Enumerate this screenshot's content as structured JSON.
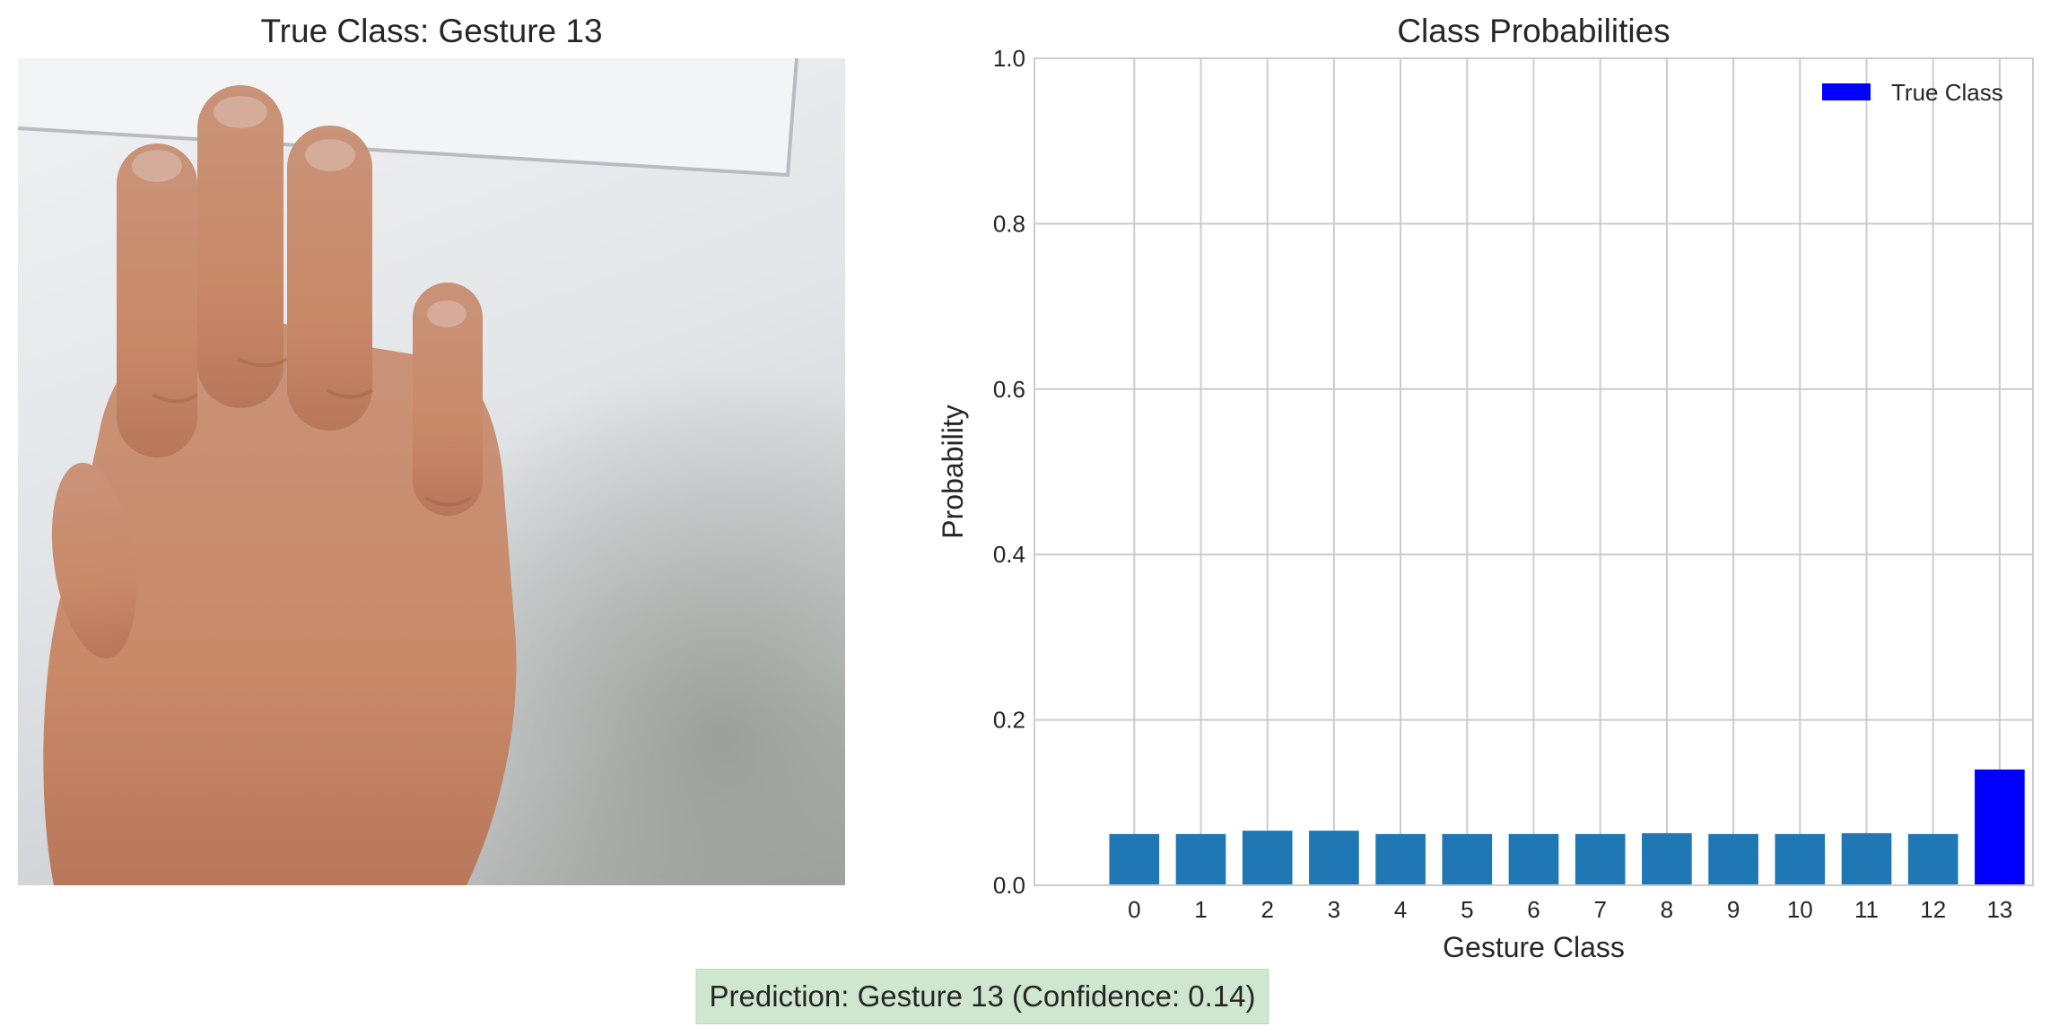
{
  "image_panel": {
    "title": "True Class: Gesture 13"
  },
  "chart_data": {
    "type": "bar",
    "title": "Class Probabilities",
    "xlabel": "Gesture Class",
    "ylabel": "Probability",
    "categories": [
      "0",
      "1",
      "2",
      "3",
      "4",
      "5",
      "6",
      "7",
      "8",
      "9",
      "10",
      "11",
      "12",
      "13"
    ],
    "values": [
      0.062,
      0.062,
      0.066,
      0.066,
      0.062,
      0.062,
      0.062,
      0.062,
      0.063,
      0.062,
      0.062,
      0.063,
      0.062,
      0.14
    ],
    "ylim": [
      0,
      1.0
    ],
    "yticks": [
      "0.0",
      "0.2",
      "0.4",
      "0.6",
      "0.8",
      "1.0"
    ],
    "highlight_index": 13,
    "bar_color": "#1f77b4",
    "highlight_color": "#0000ff",
    "grid": true,
    "legend": {
      "placement": "top-right",
      "entries": [
        "True Class"
      ]
    }
  },
  "prediction": {
    "text": "Prediction: Gesture 13 (Confidence: 0.14)"
  }
}
